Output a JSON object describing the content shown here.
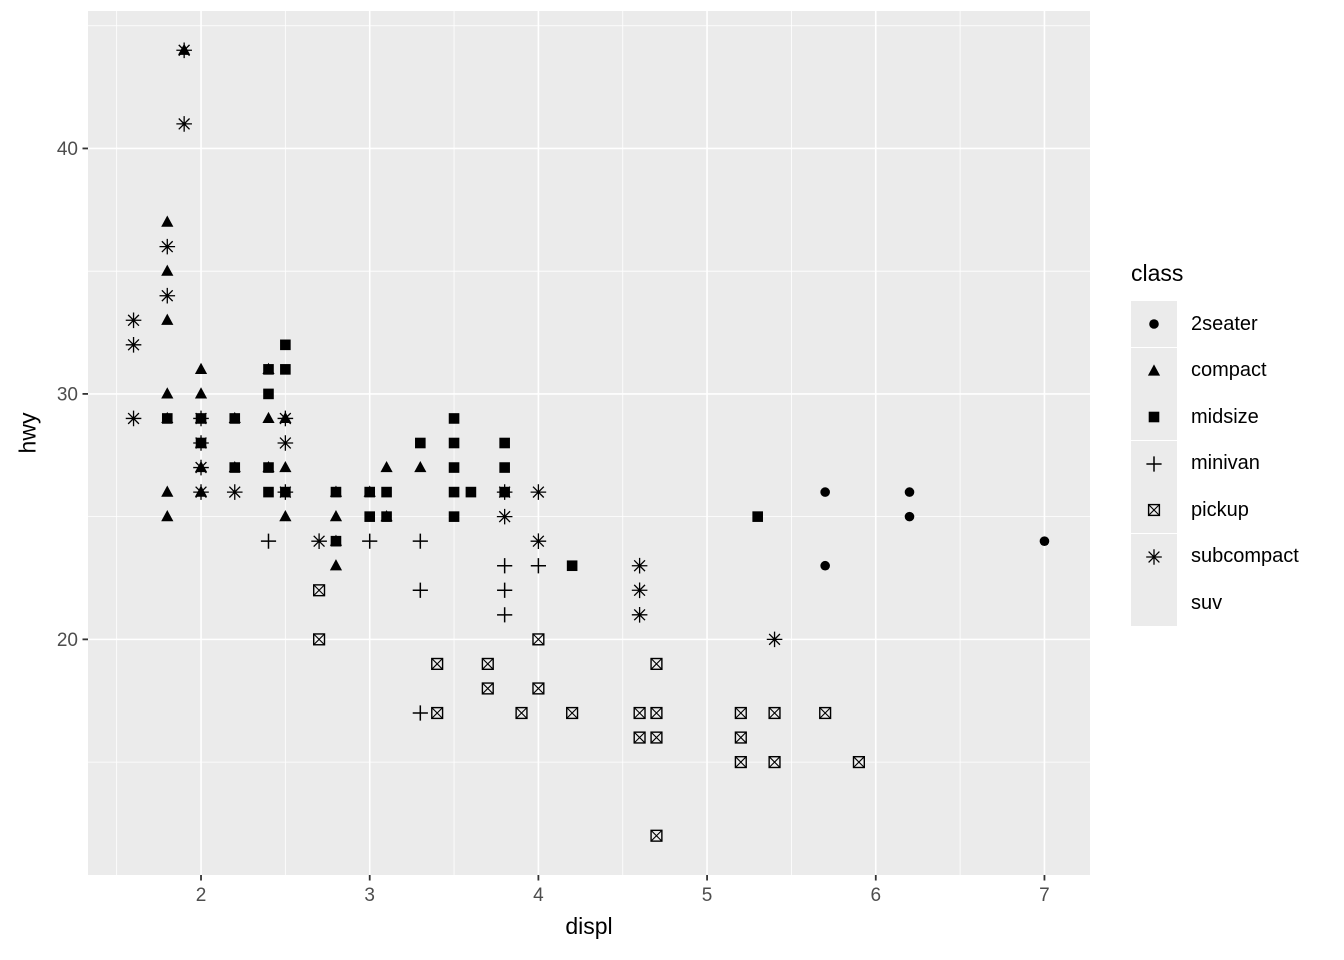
{
  "chart_data": {
    "type": "scatter",
    "xlabel": "displ",
    "ylabel": "hwy",
    "legend_title": "class",
    "xlim": [
      1.33,
      7.27
    ],
    "ylim": [
      10.4,
      45.6
    ],
    "x_ticks": [
      2,
      3,
      4,
      5,
      6,
      7
    ],
    "y_ticks": [
      20,
      30,
      40
    ],
    "x_minor_ticks": [
      1.5,
      2.5,
      3.5,
      4.5,
      5.5,
      6.5
    ],
    "y_minor_ticks": [
      15,
      25,
      35,
      45
    ],
    "grid": "major and minor white gridlines on grey panel",
    "legend_position": "right",
    "colors": {
      "panel": "#EBEBEB",
      "grid": "#FFFFFF",
      "marker": "#000000",
      "tick_label": "#4D4D4D",
      "tick_mark": "#333333",
      "axis_title": "#000000"
    },
    "series": [
      {
        "name": "2seater",
        "shape": "filled-circle",
        "points": [
          [
            5.7,
            26
          ],
          [
            5.7,
            23
          ],
          [
            6.2,
            26
          ],
          [
            6.2,
            25
          ],
          [
            7.0,
            24
          ]
        ]
      },
      {
        "name": "compact",
        "shape": "filled-triangle",
        "points": [
          [
            1.9,
            44
          ],
          [
            1.8,
            37
          ],
          [
            1.8,
            35
          ],
          [
            1.8,
            33
          ],
          [
            1.8,
            30
          ],
          [
            1.8,
            29
          ],
          [
            1.8,
            26
          ],
          [
            1.8,
            25
          ],
          [
            2.0,
            31
          ],
          [
            2.0,
            30
          ],
          [
            2.0,
            29
          ],
          [
            2.0,
            28
          ],
          [
            2.0,
            27
          ],
          [
            2.0,
            26
          ],
          [
            2.2,
            29
          ],
          [
            2.2,
            27
          ],
          [
            2.4,
            31
          ],
          [
            2.4,
            29
          ],
          [
            2.4,
            27
          ],
          [
            2.5,
            29
          ],
          [
            2.5,
            27
          ],
          [
            2.5,
            25
          ],
          [
            2.8,
            26
          ],
          [
            2.8,
            25
          ],
          [
            2.8,
            24
          ],
          [
            2.8,
            23
          ],
          [
            3.0,
            26
          ],
          [
            3.1,
            27
          ],
          [
            3.1,
            25
          ],
          [
            3.3,
            27
          ]
        ]
      },
      {
        "name": "midsize",
        "shape": "filled-square",
        "points": [
          [
            1.8,
            29
          ],
          [
            2.0,
            29
          ],
          [
            2.0,
            28
          ],
          [
            2.2,
            29
          ],
          [
            2.2,
            27
          ],
          [
            2.4,
            31
          ],
          [
            2.4,
            30
          ],
          [
            2.4,
            27
          ],
          [
            2.4,
            26
          ],
          [
            2.5,
            32
          ],
          [
            2.5,
            31
          ],
          [
            2.5,
            26
          ],
          [
            2.8,
            26
          ],
          [
            2.8,
            24
          ],
          [
            3.0,
            26
          ],
          [
            3.0,
            25
          ],
          [
            3.1,
            26
          ],
          [
            3.1,
            25
          ],
          [
            3.3,
            28
          ],
          [
            3.5,
            29
          ],
          [
            3.5,
            28
          ],
          [
            3.5,
            27
          ],
          [
            3.5,
            26
          ],
          [
            3.5,
            25
          ],
          [
            3.6,
            26
          ],
          [
            3.8,
            28
          ],
          [
            3.8,
            27
          ],
          [
            3.8,
            26
          ],
          [
            4.2,
            23
          ],
          [
            5.3,
            25
          ]
        ]
      },
      {
        "name": "minivan",
        "shape": "plus",
        "points": [
          [
            2.4,
            24
          ],
          [
            3.0,
            24
          ],
          [
            3.3,
            24
          ],
          [
            3.3,
            22
          ],
          [
            3.3,
            17
          ],
          [
            3.8,
            23
          ],
          [
            3.8,
            22
          ],
          [
            3.8,
            21
          ],
          [
            4.0,
            23
          ]
        ]
      },
      {
        "name": "pickup",
        "shape": "boxed-x",
        "points": [
          [
            2.7,
            22
          ],
          [
            2.7,
            20
          ],
          [
            3.4,
            19
          ],
          [
            3.4,
            17
          ],
          [
            3.7,
            19
          ],
          [
            3.7,
            18
          ],
          [
            3.9,
            17
          ],
          [
            4.0,
            20
          ],
          [
            4.0,
            18
          ],
          [
            4.2,
            17
          ],
          [
            4.6,
            17
          ],
          [
            4.6,
            16
          ],
          [
            4.7,
            19
          ],
          [
            4.7,
            17
          ],
          [
            4.7,
            16
          ],
          [
            4.7,
            12
          ],
          [
            5.2,
            17
          ],
          [
            5.2,
            16
          ],
          [
            5.2,
            15
          ],
          [
            5.4,
            17
          ],
          [
            5.4,
            15
          ],
          [
            5.7,
            17
          ],
          [
            5.9,
            15
          ]
        ]
      },
      {
        "name": "subcompact",
        "shape": "asterisk",
        "points": [
          [
            1.9,
            44
          ],
          [
            1.9,
            41
          ],
          [
            1.8,
            36
          ],
          [
            1.8,
            34
          ],
          [
            1.6,
            33
          ],
          [
            1.6,
            32
          ],
          [
            1.6,
            29
          ],
          [
            2.0,
            29
          ],
          [
            2.0,
            28
          ],
          [
            2.0,
            27
          ],
          [
            2.0,
            26
          ],
          [
            2.2,
            26
          ],
          [
            2.5,
            29
          ],
          [
            2.5,
            28
          ],
          [
            2.5,
            26
          ],
          [
            2.7,
            24
          ],
          [
            3.8,
            26
          ],
          [
            3.8,
            25
          ],
          [
            4.0,
            26
          ],
          [
            4.0,
            24
          ],
          [
            4.6,
            23
          ],
          [
            4.6,
            22
          ],
          [
            4.6,
            21
          ],
          [
            5.4,
            20
          ]
        ]
      },
      {
        "name": "suv",
        "shape": "none",
        "points": []
      }
    ]
  }
}
